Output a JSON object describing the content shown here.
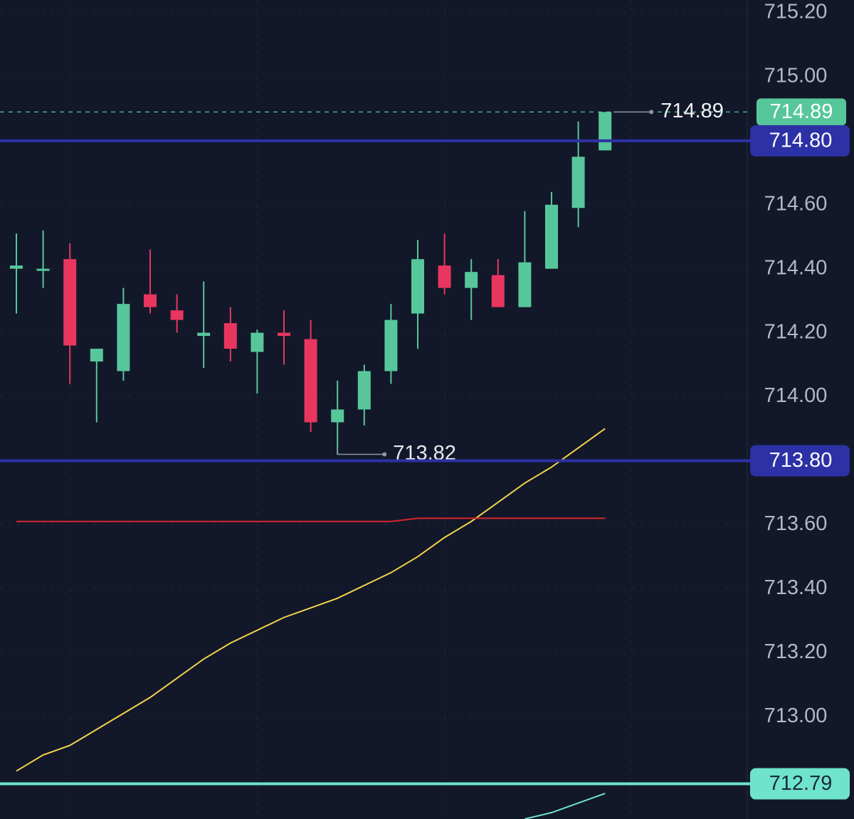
{
  "chart_data": {
    "type": "candlestick",
    "categories": [
      null,
      null,
      null,
      null,
      null,
      null,
      null,
      null,
      null,
      null,
      null,
      null,
      null,
      null,
      null,
      null,
      null,
      null,
      null,
      null,
      null,
      null,
      null
    ],
    "open": [
      714.4,
      714.4,
      714.43,
      714.11,
      714.08,
      714.32,
      714.27,
      714.19,
      714.23,
      714.14,
      714.2,
      714.18,
      713.92,
      713.96,
      714.08,
      714.26,
      714.41,
      714.34,
      714.38,
      714.28,
      714.4,
      714.59,
      714.77
    ],
    "high": [
      714.51,
      714.52,
      714.48,
      714.15,
      714.34,
      714.46,
      714.32,
      714.36,
      714.28,
      714.21,
      714.27,
      714.24,
      714.05,
      714.1,
      714.29,
      714.49,
      714.51,
      714.43,
      714.43,
      714.58,
      714.64,
      714.86,
      714.89
    ],
    "low": [
      714.26,
      714.34,
      714.04,
      713.92,
      714.05,
      714.26,
      714.2,
      714.09,
      714.11,
      714.01,
      714.1,
      713.89,
      713.82,
      713.91,
      714.04,
      714.15,
      714.32,
      714.24,
      714.28,
      714.28,
      714.4,
      714.53,
      714.77
    ],
    "close": [
      714.41,
      714.4,
      714.16,
      714.15,
      714.29,
      714.28,
      714.24,
      714.2,
      714.15,
      714.2,
      714.19,
      713.92,
      713.96,
      714.08,
      714.24,
      714.43,
      714.34,
      714.39,
      714.28,
      714.42,
      714.6,
      714.75,
      714.89
    ],
    "up_color": "#57c79b",
    "down_color": "#e8365f",
    "lines": [
      {
        "color": "#f3d34a",
        "values": [
          712.83,
          712.88,
          712.91,
          712.96,
          713.01,
          713.06,
          713.12,
          713.18,
          713.23,
          713.27,
          713.31,
          713.34,
          713.37,
          713.41,
          713.45,
          713.5,
          713.56,
          713.61,
          713.67,
          713.73,
          713.78,
          713.84,
          713.9
        ]
      },
      {
        "color": "#d8262c",
        "values": [
          713.61,
          713.61,
          713.61,
          713.61,
          713.61,
          713.61,
          713.61,
          713.61,
          713.61,
          713.61,
          713.61,
          713.61,
          713.61,
          713.61,
          713.61,
          713.62,
          713.62,
          713.62,
          713.62,
          713.62,
          713.62,
          713.62,
          713.62
        ]
      },
      {
        "color": "#6fe3cc",
        "values": [
          null,
          null,
          null,
          null,
          null,
          null,
          null,
          null,
          null,
          null,
          null,
          null,
          null,
          null,
          null,
          null,
          null,
          null,
          null,
          712.68,
          712.7,
          712.73,
          712.76
        ]
      }
    ],
    "price_lines": [
      {
        "value": 714.8,
        "label": "714.80",
        "color": "#2d31a6",
        "text_color": "#ffffff"
      },
      {
        "value": 713.8,
        "label": "713.80",
        "color": "#2d31a6",
        "text_color": "#ffffff"
      },
      {
        "value": 712.79,
        "label": "712.79",
        "color": "#6fe3cc",
        "text_color": "#1a2a3a"
      }
    ],
    "last_price": {
      "value": 714.89,
      "color": "#57c79b"
    },
    "low_annotation": {
      "value": 713.82
    },
    "ylim": [
      712.68,
      715.24
    ],
    "yticks": [
      {
        "value": 715.2,
        "label": "715.20"
      },
      {
        "value": 715.0,
        "label": "715.00"
      },
      {
        "value": 714.6,
        "label": "714.60"
      },
      {
        "value": 714.4,
        "label": "714.40"
      },
      {
        "value": 714.2,
        "label": "714.20"
      },
      {
        "value": 714.0,
        "label": "714.00"
      },
      {
        "value": 713.6,
        "label": "713.60"
      },
      {
        "value": 713.4,
        "label": "713.40"
      },
      {
        "value": 713.2,
        "label": "713.20"
      },
      {
        "value": 713.0,
        "label": "713.00"
      }
    ],
    "grid": true
  }
}
